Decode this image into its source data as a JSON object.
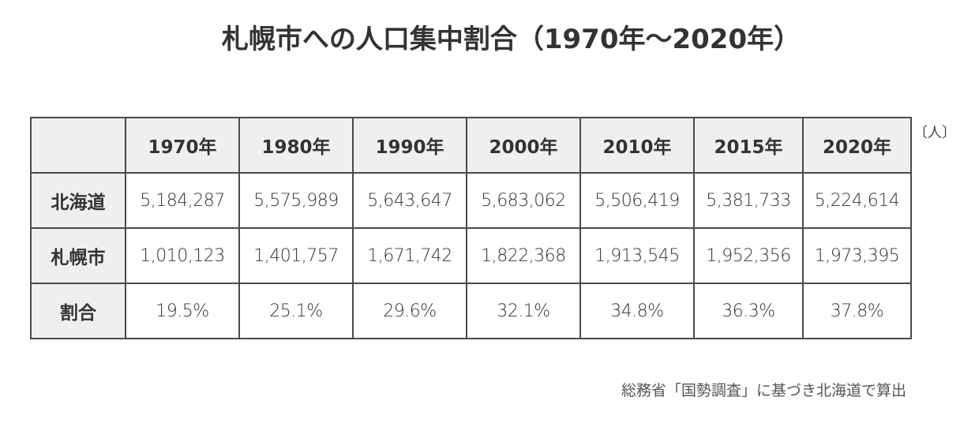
{
  "title": "札幌市への人口集中割合（1970年～2020年）",
  "unit": "〔人〕",
  "table": {
    "columns": [
      "1970年",
      "1980年",
      "1990年",
      "2000年",
      "2010年",
      "2015年",
      "2020年"
    ],
    "rows": [
      {
        "label": "北海道",
        "cells": [
          "5,184,287",
          "5,575,989",
          "5,643,647",
          "5,683,062",
          "5,506,419",
          "5,381,733",
          "5,224,614"
        ]
      },
      {
        "label": "札幌市",
        "cells": [
          "1,010,123",
          "1,401,757",
          "1,671,742",
          "1,822,368",
          "1,913,545",
          "1,952,356",
          "1,973,395"
        ]
      },
      {
        "label": "割合",
        "cells": [
          "19.5%",
          "25.1%",
          "29.6%",
          "32.1%",
          "34.8%",
          "36.3%",
          "37.8%"
        ]
      }
    ]
  },
  "note": "総務省「国勢調査」に基づき北海道で算出"
}
